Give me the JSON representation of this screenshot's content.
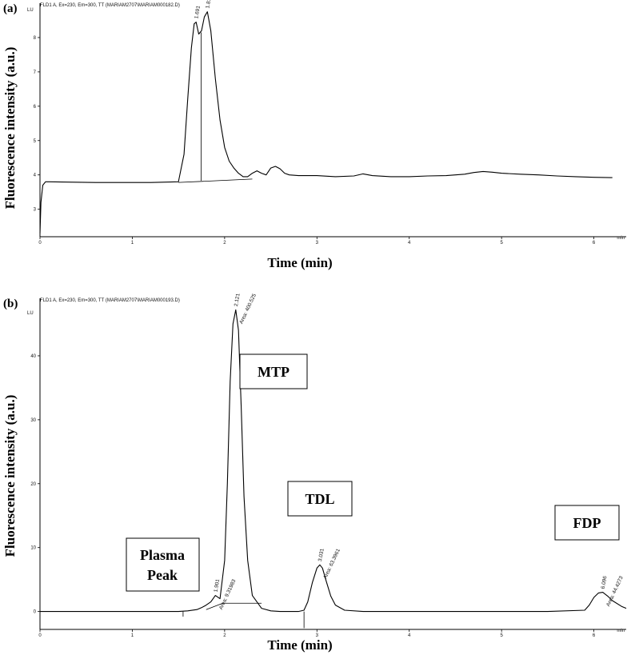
{
  "chart_data": [
    {
      "panel_label": "(a)",
      "header": "FLD1 A, Ex=230, Em=300, TT (MARIAM2707\\MARIAM000182.D)",
      "type": "line",
      "unit_label": "LU",
      "xlabel": "Time (min)",
      "ylabel": "Fluorescence intensity (a.u.)",
      "xlim": [
        0,
        6.35
      ],
      "ylim": [
        2.2,
        9.0
      ],
      "xticks": [
        0,
        1,
        2,
        3,
        4,
        5,
        6
      ],
      "xtick_labels": [
        "0",
        "1",
        "2",
        "3",
        "4",
        "5",
        "6"
      ],
      "xaxis_unit": "min",
      "yticks": [
        3,
        4,
        5,
        6,
        7,
        8
      ],
      "ytick_labels": [
        "3",
        "4",
        "5",
        "6",
        "7",
        "8"
      ],
      "series": [
        {
          "x": [
            0,
            0.01,
            0.03,
            0.06,
            0.1,
            0.3,
            0.6,
            0.9,
            1.2,
            1.5,
            1.56,
            1.6,
            1.64,
            1.67,
            1.691,
            1.72,
            1.75,
            1.78,
            1.813,
            1.85,
            1.9,
            1.95,
            2.0,
            2.05,
            2.1,
            2.15,
            2.2,
            2.25,
            2.3,
            2.35,
            2.4,
            2.45,
            2.5,
            2.55,
            2.6,
            2.65,
            2.7,
            2.8,
            3.0,
            3.2,
            3.4,
            3.5,
            3.6,
            3.8,
            4.0,
            4.2,
            4.4,
            4.6,
            4.7,
            4.8,
            4.9,
            5.0,
            5.2,
            5.4,
            5.6,
            5.8,
            6.0,
            6.2
          ],
          "y": [
            2.3,
            3.2,
            3.7,
            3.8,
            3.8,
            3.79,
            3.78,
            3.78,
            3.78,
            3.8,
            4.6,
            6.2,
            7.7,
            8.4,
            8.45,
            8.1,
            8.2,
            8.6,
            8.75,
            8.2,
            6.8,
            5.6,
            4.8,
            4.4,
            4.2,
            4.05,
            3.95,
            3.95,
            4.05,
            4.12,
            4.05,
            4.0,
            4.2,
            4.25,
            4.18,
            4.05,
            4.0,
            3.98,
            3.98,
            3.95,
            3.97,
            4.03,
            3.98,
            3.95,
            3.95,
            3.97,
            3.98,
            4.02,
            4.07,
            4.1,
            4.08,
            4.05,
            4.02,
            4.0,
            3.97,
            3.95,
            3.93,
            3.92
          ]
        }
      ],
      "baseline": {
        "x": [
          1.5,
          2.3
        ],
        "y": [
          3.78,
          3.88
        ]
      },
      "peak_labels": [
        {
          "text": "1.691",
          "x": 1.691,
          "y": 8.45
        },
        {
          "text": "1.813",
          "x": 1.813,
          "y": 8.75
        }
      ]
    },
    {
      "panel_label": "(b)",
      "header": "FLD1 A, Ex=230, Em=300, TT (MARIAM2707\\MARIAM000193.D)",
      "type": "line",
      "unit_label": "LU",
      "xlabel": "Time (min)",
      "ylabel": "Fluorescence intensity (a.u.)",
      "xlim": [
        0,
        6.35
      ],
      "ylim": [
        -2.8,
        49
      ],
      "xticks": [
        0,
        1,
        2,
        3,
        4,
        5,
        6
      ],
      "xtick_labels": [
        "0",
        "1",
        "2",
        "3",
        "4",
        "5",
        "6"
      ],
      "xaxis_unit": "min",
      "yticks": [
        0,
        10,
        20,
        30,
        40
      ],
      "ytick_labels": [
        "0",
        "10",
        "20",
        "30",
        "40"
      ],
      "series": [
        {
          "x": [
            0,
            0.5,
            1.0,
            1.5,
            1.6,
            1.7,
            1.75,
            1.8,
            1.85,
            1.9,
            1.95,
            2.0,
            2.03,
            2.06,
            2.09,
            2.121,
            2.15,
            2.18,
            2.21,
            2.25,
            2.3,
            2.4,
            2.5,
            2.6,
            2.8,
            2.86,
            2.9,
            2.95,
            3.0,
            3.031,
            3.06,
            3.1,
            3.15,
            3.2,
            3.3,
            3.5,
            4.0,
            4.5,
            5.0,
            5.5,
            5.9,
            5.95,
            6.0,
            6.05,
            6.096,
            6.15,
            6.2,
            6.3,
            6.35
          ],
          "y": [
            0,
            0,
            0,
            0,
            0.1,
            0.3,
            0.6,
            1.0,
            1.5,
            2.5,
            2.0,
            8.0,
            20.0,
            36.0,
            45.0,
            47.2,
            44.0,
            32.0,
            18.0,
            8.0,
            2.5,
            0.5,
            0.1,
            0,
            0,
            0.2,
            1.5,
            4.5,
            6.8,
            7.3,
            6.8,
            4.8,
            2.4,
            1.0,
            0.2,
            0,
            0,
            0,
            0,
            0,
            0.2,
            1.0,
            2.2,
            2.9,
            3.0,
            2.4,
            1.7,
            0.8,
            0.5
          ]
        }
      ],
      "peak_labels": [
        {
          "text": "1.901",
          "x": 1.901,
          "y": 2.5
        },
        {
          "text": "2.121",
          "x": 2.121,
          "y": 47.2
        },
        {
          "text": "3.031",
          "x": 3.031,
          "y": 7.3
        },
        {
          "text": "6.096",
          "x": 6.096,
          "y": 3.0
        }
      ],
      "area_labels": [
        {
          "text": "Area: 9.31983",
          "x": 1.901,
          "y": 2.5
        },
        {
          "text": "Area: 400.525",
          "x": 2.121,
          "y": 47.2
        },
        {
          "text": "Area: 63.3961",
          "x": 3.031,
          "y": 7.3
        },
        {
          "text": "Area: 44.4273",
          "x": 6.096,
          "y": 3.0
        }
      ],
      "annotations": [
        {
          "text": [
            "MTP"
          ]
        },
        {
          "text": [
            "TDL"
          ]
        },
        {
          "text": [
            "FDP"
          ]
        },
        {
          "text": [
            "Plasma",
            "Peak"
          ]
        }
      ]
    }
  ]
}
